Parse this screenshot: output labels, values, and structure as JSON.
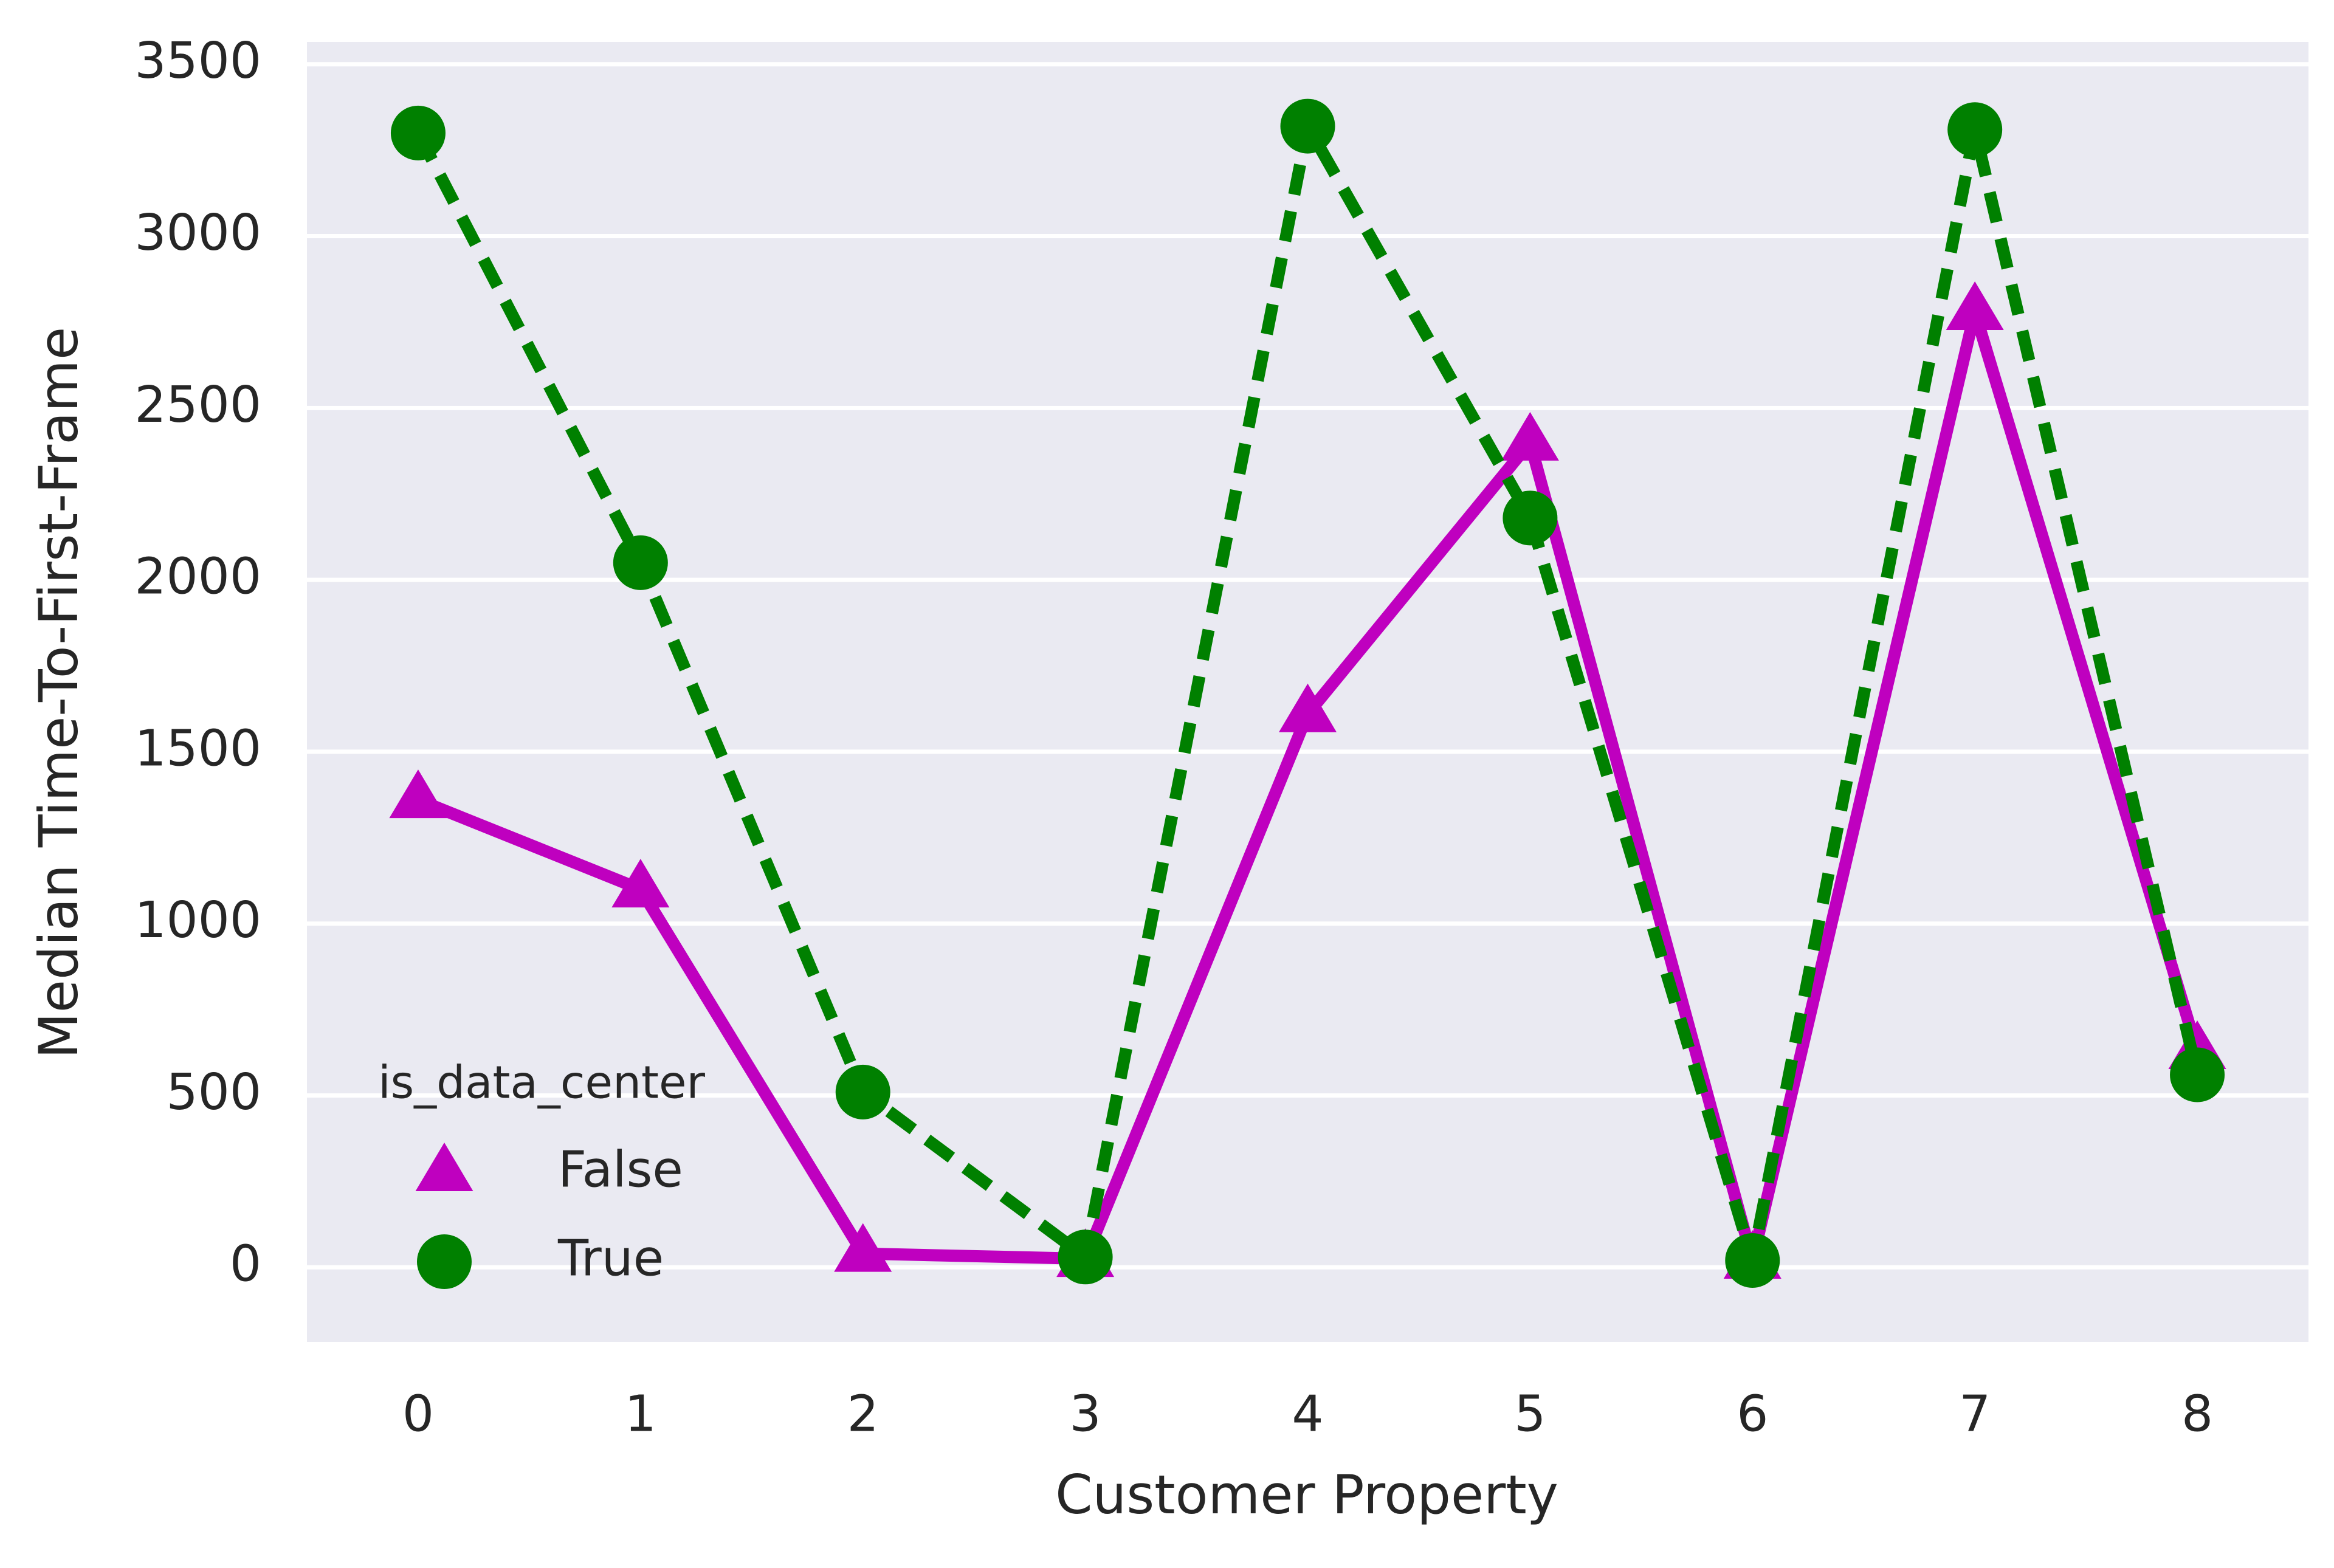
{
  "chart_data": {
    "type": "line",
    "x_label": "Customer Property",
    "y_label": "Median Time-To-First-Frame",
    "categories": [
      "0",
      "1",
      "2",
      "3",
      "4",
      "5",
      "6",
      "7",
      "8"
    ],
    "series": [
      {
        "name": "False",
        "color": "#bf00bf",
        "marker": "triangle",
        "linestyle": "solid",
        "values": [
          1360,
          1100,
          40,
          25,
          1610,
          2400,
          20,
          2780,
          630
        ]
      },
      {
        "name": "True",
        "color": "#008000",
        "marker": "circle",
        "linestyle": "dashed",
        "values": [
          3300,
          2050,
          510,
          30,
          3320,
          2180,
          20,
          3310,
          560
        ]
      }
    ],
    "ylim": [
      -217,
      3565
    ],
    "yticks": [
      0,
      500,
      1000,
      1500,
      2000,
      2500,
      3000,
      3500
    ],
    "grid": true,
    "legend_title": "is_data_center",
    "legend": "lower left"
  }
}
